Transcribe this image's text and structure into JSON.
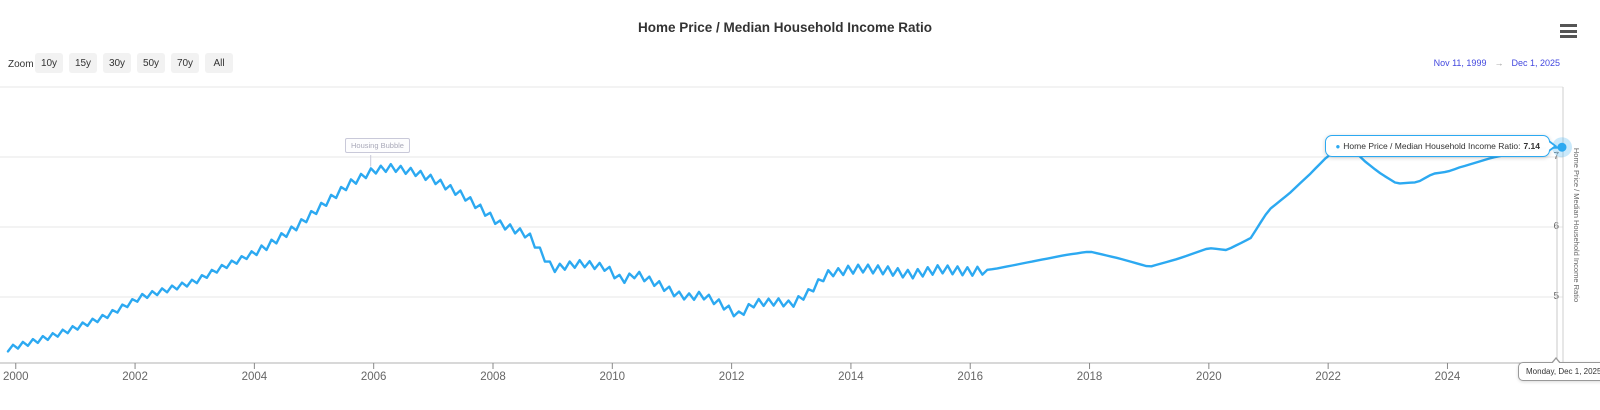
{
  "header": {
    "title": "Home Price / Median Household Income Ratio"
  },
  "range_selector": {
    "zoom_label": "Zoom",
    "buttons": [
      "10y",
      "15y",
      "30y",
      "50y",
      "70y",
      "All"
    ],
    "from_date": "Nov 11, 1999",
    "arrow": "→",
    "to_date": "Dec 1, 2025"
  },
  "tooltip": {
    "bullet": "●",
    "label": "Home Price / Median Household Income Ratio:",
    "value": "7.14"
  },
  "date_tooltip": {
    "text": "Monday, Dec 1, 2025"
  },
  "colors": {
    "series": "#2CA9F1",
    "halo": "rgba(44,169,241,0.25)",
    "grid": "#e7e7e7",
    "plot_border": "#cfcfcf",
    "axis_line": "#b0b0b0",
    "tick": "#888888",
    "label": "#666666",
    "date_input": "#4348df"
  },
  "chart_data": {
    "type": "line",
    "title": "Home Price / Median Household Income Ratio",
    "ylabel": "Home Price / Median Household Income Ratio",
    "xlim": [
      1999.87,
      2025.92
    ],
    "ylim": [
      4.06,
      8.0
    ],
    "x_ticks": [
      2000,
      2002,
      2004,
      2006,
      2008,
      2010,
      2012,
      2014,
      2016,
      2018,
      2020,
      2022,
      2024
    ],
    "y_ticks": [
      5,
      6,
      7
    ],
    "grid": true,
    "legend": "none",
    "noise": {
      "amplitude": 0.05,
      "period_years": 0.1667,
      "until_year": 2016.25
    },
    "annotation": {
      "label": "Housing Bubble",
      "x": 2005.95,
      "y": 6.85
    },
    "end_marker": {
      "x": 2025.92,
      "y": 7.14
    },
    "series": [
      {
        "name": "Home Price / Median Household Income Ratio",
        "color": "#2CA9F1",
        "points": [
          [
            1999.87,
            4.26
          ],
          [
            2000.2,
            4.34
          ],
          [
            2000.6,
            4.44
          ],
          [
            2001.0,
            4.56
          ],
          [
            2001.5,
            4.72
          ],
          [
            2002.1,
            5.0
          ],
          [
            2002.6,
            5.12
          ],
          [
            2003.0,
            5.22
          ],
          [
            2003.4,
            5.4
          ],
          [
            2003.8,
            5.55
          ],
          [
            2004.2,
            5.72
          ],
          [
            2004.7,
            6.0
          ],
          [
            2005.2,
            6.35
          ],
          [
            2005.6,
            6.62
          ],
          [
            2006.0,
            6.81
          ],
          [
            2006.3,
            6.85
          ],
          [
            2006.7,
            6.78
          ],
          [
            2007.0,
            6.68
          ],
          [
            2007.5,
            6.45
          ],
          [
            2007.8,
            6.26
          ],
          [
            2008.1,
            6.05
          ],
          [
            2008.6,
            5.88
          ],
          [
            2009.0,
            5.4
          ],
          [
            2009.3,
            5.46
          ],
          [
            2009.5,
            5.48
          ],
          [
            2009.9,
            5.42
          ],
          [
            2010.1,
            5.27
          ],
          [
            2010.2,
            5.25
          ],
          [
            2010.4,
            5.33
          ],
          [
            2010.8,
            5.17
          ],
          [
            2011.1,
            5.03
          ],
          [
            2011.3,
            5.0
          ],
          [
            2011.5,
            5.03
          ],
          [
            2011.8,
            4.91
          ],
          [
            2012.0,
            4.8
          ],
          [
            2012.1,
            4.73
          ],
          [
            2012.4,
            4.92
          ],
          [
            2012.8,
            4.93
          ],
          [
            2013.0,
            4.89
          ],
          [
            2013.3,
            5.07
          ],
          [
            2013.6,
            5.33
          ],
          [
            2013.9,
            5.38
          ],
          [
            2014.2,
            5.41
          ],
          [
            2014.6,
            5.38
          ],
          [
            2015.0,
            5.32
          ],
          [
            2015.5,
            5.4
          ],
          [
            2016.0,
            5.36
          ],
          [
            2016.4,
            5.4
          ],
          [
            2017.0,
            5.5
          ],
          [
            2017.6,
            5.6
          ],
          [
            2018.0,
            5.65
          ],
          [
            2018.5,
            5.55
          ],
          [
            2019.0,
            5.43
          ],
          [
            2019.5,
            5.55
          ],
          [
            2020.0,
            5.7
          ],
          [
            2020.3,
            5.67
          ],
          [
            2020.7,
            5.84
          ],
          [
            2021.0,
            6.24
          ],
          [
            2021.35,
            6.48
          ],
          [
            2021.7,
            6.76
          ],
          [
            2022.0,
            7.02
          ],
          [
            2022.35,
            7.16
          ],
          [
            2022.6,
            6.95
          ],
          [
            2022.85,
            6.78
          ],
          [
            2023.15,
            6.62
          ],
          [
            2023.5,
            6.64
          ],
          [
            2023.75,
            6.76
          ],
          [
            2024.0,
            6.79
          ],
          [
            2024.2,
            6.85
          ],
          [
            2024.75,
            6.99
          ],
          [
            2025.3,
            7.09
          ],
          [
            2025.7,
            7.13
          ],
          [
            2025.92,
            7.14
          ]
        ]
      }
    ]
  }
}
